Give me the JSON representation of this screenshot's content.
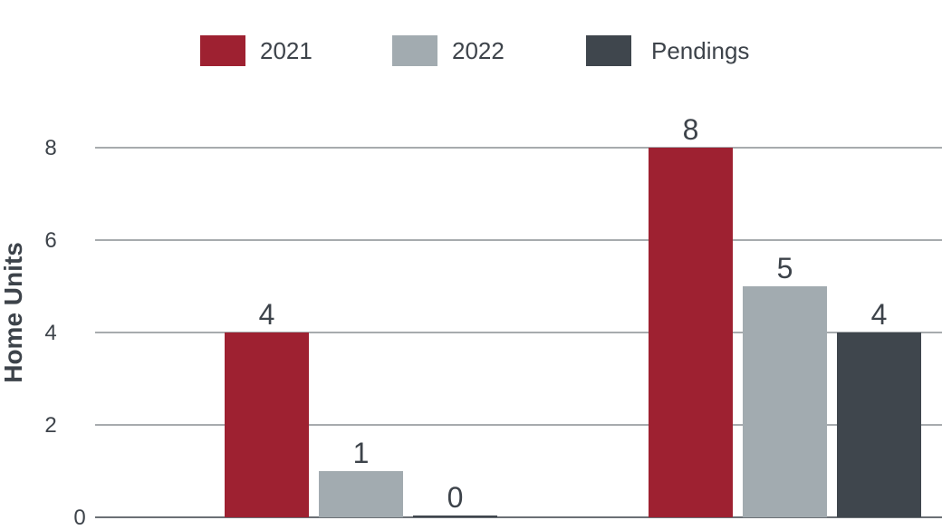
{
  "chart_data": {
    "type": "bar",
    "title": "",
    "xlabel": "",
    "ylabel": "Home Units",
    "categories": [
      "",
      ""
    ],
    "series": [
      {
        "name": "2021",
        "color": "#9e2131",
        "values": [
          4,
          8
        ],
        "labels": [
          "4",
          "8"
        ]
      },
      {
        "name": "2022",
        "color": "#a2abb0",
        "values": [
          1,
          5
        ],
        "labels": [
          "1",
          "5"
        ]
      },
      {
        "name": "Pendings",
        "color": "#3f464d",
        "values": [
          0,
          4
        ],
        "labels": [
          "0",
          "4"
        ]
      }
    ],
    "ylim": [
      0,
      8
    ],
    "yticks": [
      0,
      2,
      4,
      6,
      8
    ],
    "ytick_labels": [
      "0",
      "2",
      "4",
      "6",
      "8"
    ],
    "grid": true,
    "legend_position": "top-center"
  }
}
